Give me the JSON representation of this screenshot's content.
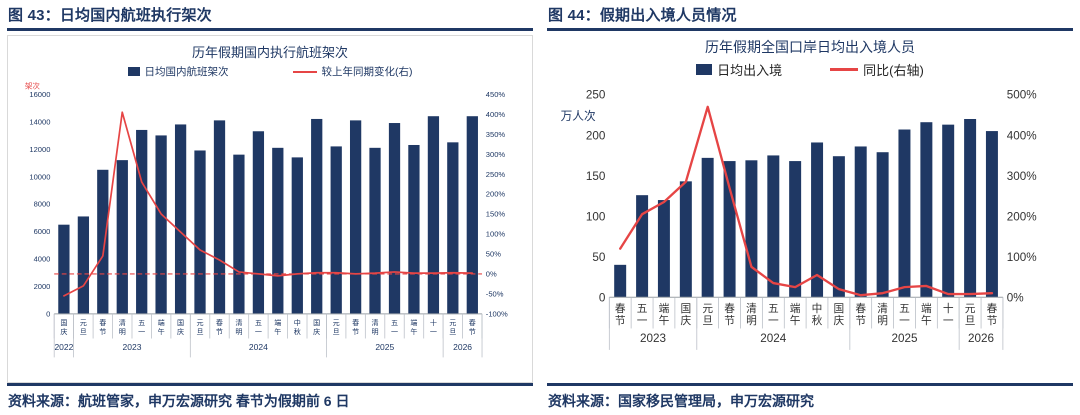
{
  "panels": [
    {
      "header": "图 43：日均国内航班执行架次",
      "source": "资料来源：航班管家，申万宏源研究 春节为假期前 6 日"
    },
    {
      "header": "图 44：假期出入境人员情况",
      "source": "资料来源：国家移民管理局，申万宏源研究"
    }
  ],
  "chart_data": [
    {
      "type": "bar+line",
      "title": "历年假期国内执行航班架次",
      "unit_label": "架次",
      "categories": [
        "国庆",
        "元旦",
        "春节",
        "清明",
        "五一",
        "端午",
        "国庆",
        "元旦",
        "春节",
        "清明",
        "五一",
        "端午",
        "中秋",
        "国庆",
        "元旦",
        "春节",
        "清明",
        "五一",
        "端午",
        "十一",
        "元旦",
        "春节"
      ],
      "year_groups": [
        {
          "year": "2022",
          "count": 1
        },
        {
          "year": "2023",
          "count": 6
        },
        {
          "year": "2024",
          "count": 7
        },
        {
          "year": "2025",
          "count": 6
        },
        {
          "year": "2026",
          "count": 2
        }
      ],
      "series": [
        {
          "name": "日均国内航班架次",
          "type": "bar",
          "axis": "left",
          "values": [
            6500,
            7100,
            10500,
            11200,
            13400,
            13000,
            13800,
            11900,
            14100,
            11600,
            13300,
            12100,
            11400,
            14200,
            12200,
            14100,
            12100,
            13900,
            12300,
            14400,
            12500,
            14400
          ]
        },
        {
          "name": "较上年同期变化(右)",
          "type": "line",
          "axis": "right",
          "values": [
            -55,
            -30,
            45,
            405,
            230,
            150,
            105,
            60,
            35,
            5,
            0,
            -5,
            0,
            3,
            3,
            0,
            2,
            5,
            2,
            2,
            3,
            2
          ]
        }
      ],
      "y_left": {
        "min": 0,
        "max": 16000,
        "step": 2000
      },
      "y_right": {
        "min": -100,
        "max": 450,
        "step": 50,
        "suffix": "%"
      },
      "zero_dash_right": 0,
      "legend_position": "top",
      "grid": false
    },
    {
      "type": "bar+line",
      "title": "历年假期全国口岸日均出入境人员",
      "unit_label": "万人次",
      "categories": [
        "春节",
        "五一",
        "端午",
        "国庆",
        "元旦",
        "春节",
        "清明",
        "五一",
        "端午",
        "中秋",
        "国庆",
        "春节",
        "清明",
        "五一",
        "端午",
        "十一",
        "元旦",
        "春节"
      ],
      "year_groups": [
        {
          "year": "2023",
          "count": 4
        },
        {
          "year": "2024",
          "count": 7
        },
        {
          "year": "2025",
          "count": 5
        },
        {
          "year": "2026",
          "count": 2
        }
      ],
      "series": [
        {
          "name": "日均出入境",
          "type": "bar",
          "axis": "left",
          "values": [
            40,
            126,
            120,
            143,
            172,
            168,
            169,
            175,
            168,
            191,
            174,
            186,
            179,
            207,
            216,
            213,
            220,
            205
          ]
        },
        {
          "name": "同比(右轴)",
          "type": "line",
          "axis": "right",
          "values": [
            120,
            205,
            235,
            285,
            470,
            270,
            75,
            35,
            25,
            55,
            20,
            5,
            10,
            25,
            28,
            8,
            8,
            10
          ]
        }
      ],
      "y_left": {
        "min": 0,
        "max": 250,
        "step": 50
      },
      "y_right": {
        "min": 0,
        "max": 500,
        "step": 100,
        "suffix": "%"
      },
      "legend_position": "top",
      "grid": false
    }
  ],
  "colors": {
    "navy": "#1F3864",
    "red": "#E64545",
    "axis_line": "#9aa0a6",
    "separator": "#b9bec6"
  }
}
